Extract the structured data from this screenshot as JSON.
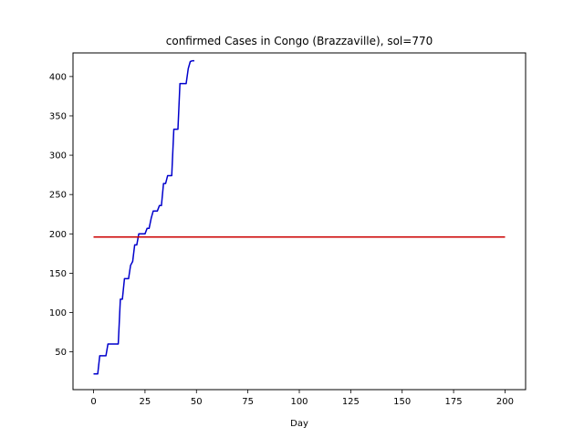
{
  "chart_data": {
    "type": "line",
    "title": "confirmed Cases in Congo (Brazzaville), sol=770",
    "xlabel": "Day",
    "ylabel": "",
    "xlim": [
      -10,
      210
    ],
    "ylim": [
      2,
      430
    ],
    "xticks": [
      0,
      25,
      50,
      75,
      100,
      125,
      150,
      175,
      200
    ],
    "yticks": [
      50,
      100,
      150,
      200,
      250,
      300,
      350,
      400
    ],
    "grid": false,
    "legend": "none",
    "series": [
      {
        "color": "#0000cc",
        "x": [
          0,
          1,
          2,
          3,
          4,
          5,
          6,
          7,
          8,
          9,
          10,
          11,
          12,
          13,
          14,
          15,
          16,
          17,
          18,
          19,
          20,
          21,
          22,
          23,
          24,
          25,
          26,
          27,
          28,
          29,
          30,
          31,
          32,
          33,
          34,
          35,
          36,
          37,
          38,
          39,
          40,
          41,
          42,
          43,
          44,
          45,
          46,
          47,
          48,
          49
        ],
        "y": [
          22,
          22,
          22,
          45,
          45,
          45,
          45,
          60,
          60,
          60,
          60,
          60,
          60,
          117,
          117,
          143,
          143,
          143,
          160,
          165,
          186,
          186,
          200,
          200,
          200,
          200,
          207,
          207,
          220,
          229,
          229,
          229,
          236,
          236,
          264,
          264,
          274,
          274,
          274,
          333,
          333,
          333,
          391,
          391,
          391,
          391,
          410,
          419,
          420,
          420
        ]
      },
      {
        "color": "#cc0000",
        "x": [
          0,
          200
        ],
        "y": [
          196,
          196
        ]
      }
    ]
  }
}
